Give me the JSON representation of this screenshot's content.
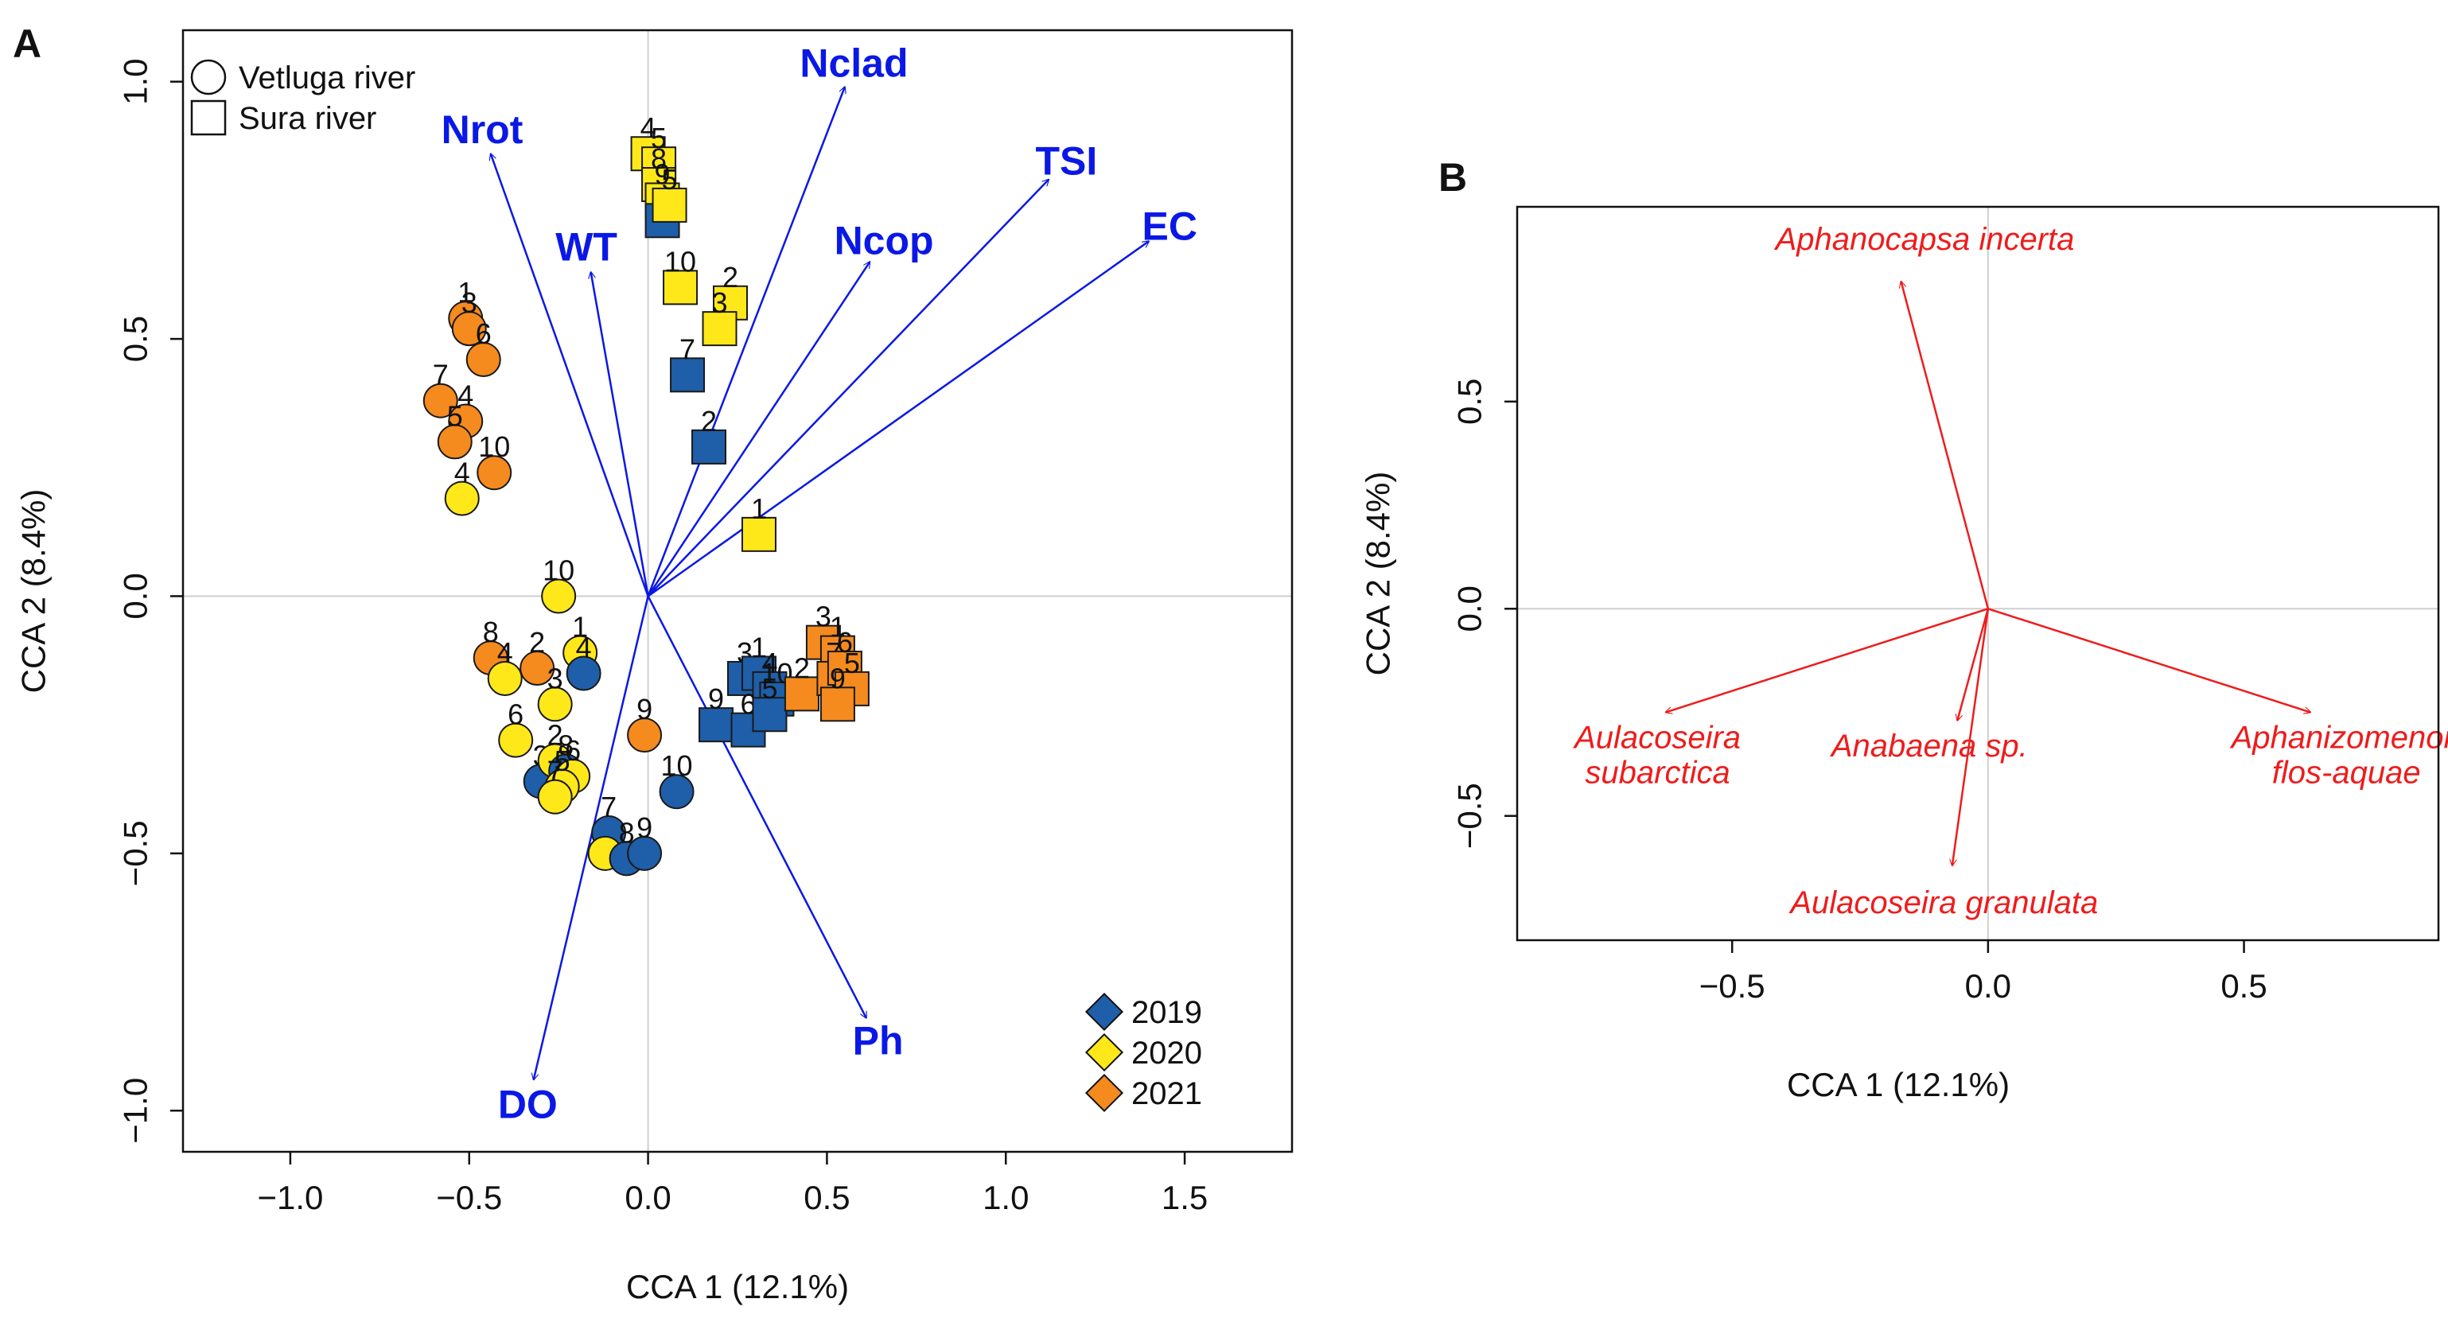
{
  "chart_data": [
    {
      "panel": "A",
      "type": "scatter",
      "xlabel": "CCA 1 (12.1%)",
      "ylabel": "CCA 2 (8.4%)",
      "xlim": [
        -1.3,
        1.8
      ],
      "ylim": [
        -1.08,
        1.1
      ],
      "xticks": [
        -1.0,
        -0.5,
        0.0,
        0.5,
        1.0,
        1.5
      ],
      "yticks": [
        -1.0,
        -0.5,
        0.0,
        0.5,
        1.0
      ],
      "xtick_labels": [
        "−1.0",
        "−0.5",
        "0.0",
        "0.5",
        "1.0",
        "1.5"
      ],
      "ytick_labels": [
        "−1.0",
        "−0.5",
        "0.0",
        "0.5",
        "1.0"
      ],
      "arrows": [
        {
          "label": "Nclad",
          "x": 0.55,
          "y": 0.99
        },
        {
          "label": "Nrot",
          "x": -0.44,
          "y": 0.86
        },
        {
          "label": "TSI",
          "x": 1.12,
          "y": 0.81
        },
        {
          "label": "EC",
          "x": 1.4,
          "y": 0.69
        },
        {
          "label": "Ncop",
          "x": 0.62,
          "y": 0.65
        },
        {
          "label": "WT",
          "x": -0.16,
          "y": 0.63
        },
        {
          "label": "Ph",
          "x": 0.61,
          "y": -0.82
        },
        {
          "label": "DO",
          "x": -0.32,
          "y": -0.94
        }
      ],
      "shape_legend": [
        {
          "shape": "circle",
          "label": "Vetluga river"
        },
        {
          "shape": "square",
          "label": "Sura river"
        }
      ],
      "year_legend": [
        {
          "year": "2019",
          "color": "#1f5ea8"
        },
        {
          "year": "2020",
          "color": "#ffe81a"
        },
        {
          "year": "2021",
          "color": "#f58a1f"
        }
      ],
      "points": [
        {
          "x": -0.51,
          "y": 0.54,
          "shape": "circle",
          "year": "2021",
          "label": "1"
        },
        {
          "x": -0.5,
          "y": 0.52,
          "shape": "circle",
          "year": "2021",
          "label": "3"
        },
        {
          "x": -0.46,
          "y": 0.46,
          "shape": "circle",
          "year": "2021",
          "label": "6"
        },
        {
          "x": -0.58,
          "y": 0.38,
          "shape": "circle",
          "year": "2021",
          "label": "7"
        },
        {
          "x": -0.51,
          "y": 0.34,
          "shape": "circle",
          "year": "2021",
          "label": "4"
        },
        {
          "x": -0.54,
          "y": 0.3,
          "shape": "circle",
          "year": "2021",
          "label": "5"
        },
        {
          "x": -0.43,
          "y": 0.24,
          "shape": "circle",
          "year": "2021",
          "label": "10"
        },
        {
          "x": -0.52,
          "y": 0.19,
          "shape": "circle",
          "year": "2020",
          "label": "4"
        },
        {
          "x": 0.0,
          "y": 0.86,
          "shape": "square",
          "year": "2020",
          "label": "4"
        },
        {
          "x": 0.03,
          "y": 0.84,
          "shape": "square",
          "year": "2020",
          "label": "5"
        },
        {
          "x": 0.03,
          "y": 0.8,
          "shape": "square",
          "year": "2020",
          "label": "8"
        },
        {
          "x": 0.04,
          "y": 0.77,
          "shape": "square",
          "year": "2020",
          "label": "9"
        },
        {
          "x": 0.04,
          "y": 0.73,
          "shape": "square",
          "year": "2019",
          "label": ""
        },
        {
          "x": 0.06,
          "y": 0.76,
          "shape": "square",
          "year": "2020",
          "label": "5"
        },
        {
          "x": 0.09,
          "y": 0.6,
          "shape": "square",
          "year": "2020",
          "label": "10"
        },
        {
          "x": 0.23,
          "y": 0.57,
          "shape": "square",
          "year": "2020",
          "label": "2"
        },
        {
          "x": 0.2,
          "y": 0.52,
          "shape": "square",
          "year": "2020",
          "label": "3"
        },
        {
          "x": 0.11,
          "y": 0.43,
          "shape": "square",
          "year": "2019",
          "label": "7"
        },
        {
          "x": 0.17,
          "y": 0.29,
          "shape": "square",
          "year": "2019",
          "label": "2"
        },
        {
          "x": 0.31,
          "y": 0.12,
          "shape": "square",
          "year": "2020",
          "label": "1"
        },
        {
          "x": -0.25,
          "y": 0.0,
          "shape": "circle",
          "year": "2020",
          "label": "10"
        },
        {
          "x": -0.44,
          "y": -0.12,
          "shape": "circle",
          "year": "2021",
          "label": "8"
        },
        {
          "x": -0.4,
          "y": -0.16,
          "shape": "circle",
          "year": "2020",
          "label": "4"
        },
        {
          "x": -0.31,
          "y": -0.14,
          "shape": "circle",
          "year": "2021",
          "label": "2"
        },
        {
          "x": -0.19,
          "y": -0.11,
          "shape": "circle",
          "year": "2020",
          "label": "1"
        },
        {
          "x": -0.18,
          "y": -0.15,
          "shape": "circle",
          "year": "2019",
          "label": "4"
        },
        {
          "x": -0.26,
          "y": -0.21,
          "shape": "circle",
          "year": "2020",
          "label": "3"
        },
        {
          "x": -0.37,
          "y": -0.28,
          "shape": "circle",
          "year": "2020",
          "label": "6"
        },
        {
          "x": -0.3,
          "y": -0.36,
          "shape": "circle",
          "year": "2019",
          "label": "3"
        },
        {
          "x": -0.26,
          "y": -0.32,
          "shape": "circle",
          "year": "2020",
          "label": "2"
        },
        {
          "x": -0.23,
          "y": -0.34,
          "shape": "circle",
          "year": "2019",
          "label": "8"
        },
        {
          "x": -0.21,
          "y": -0.35,
          "shape": "circle",
          "year": "2020",
          "label": "6"
        },
        {
          "x": -0.24,
          "y": -0.37,
          "shape": "circle",
          "year": "2020",
          "label": "5"
        },
        {
          "x": -0.26,
          "y": -0.39,
          "shape": "circle",
          "year": "2020",
          "label": "7"
        },
        {
          "x": -0.01,
          "y": -0.27,
          "shape": "circle",
          "year": "2021",
          "label": "9"
        },
        {
          "x": 0.08,
          "y": -0.38,
          "shape": "circle",
          "year": "2019",
          "label": "10"
        },
        {
          "x": -0.11,
          "y": -0.46,
          "shape": "circle",
          "year": "2019",
          "label": "7"
        },
        {
          "x": -0.12,
          "y": -0.5,
          "shape": "circle",
          "year": "2020",
          "label": ""
        },
        {
          "x": -0.06,
          "y": -0.51,
          "shape": "circle",
          "year": "2019",
          "label": "8"
        },
        {
          "x": -0.01,
          "y": -0.5,
          "shape": "circle",
          "year": "2019",
          "label": "9"
        },
        {
          "x": 0.27,
          "y": -0.16,
          "shape": "square",
          "year": "2019",
          "label": "3"
        },
        {
          "x": 0.31,
          "y": -0.15,
          "shape": "square",
          "year": "2019",
          "label": "1"
        },
        {
          "x": 0.34,
          "y": -0.18,
          "shape": "square",
          "year": "2019",
          "label": "4"
        },
        {
          "x": 0.36,
          "y": -0.2,
          "shape": "square",
          "year": "2019",
          "label": "10"
        },
        {
          "x": 0.19,
          "y": -0.25,
          "shape": "square",
          "year": "2019",
          "label": "9"
        },
        {
          "x": 0.28,
          "y": -0.26,
          "shape": "square",
          "year": "2019",
          "label": "6"
        },
        {
          "x": 0.34,
          "y": -0.23,
          "shape": "square",
          "year": "2019",
          "label": "5"
        },
        {
          "x": 0.43,
          "y": -0.19,
          "shape": "square",
          "year": "2021",
          "label": "2"
        },
        {
          "x": 0.49,
          "y": -0.09,
          "shape": "square",
          "year": "2021",
          "label": "3"
        },
        {
          "x": 0.53,
          "y": -0.11,
          "shape": "square",
          "year": "2021",
          "label": "1"
        },
        {
          "x": 0.52,
          "y": -0.16,
          "shape": "square",
          "year": "2021",
          "label": "7"
        },
        {
          "x": 0.55,
          "y": -0.14,
          "shape": "square",
          "year": "2021",
          "label": "6"
        },
        {
          "x": 0.57,
          "y": -0.18,
          "shape": "square",
          "year": "2021",
          "label": "5"
        },
        {
          "x": 0.53,
          "y": -0.21,
          "shape": "square",
          "year": "2021",
          "label": "9"
        }
      ]
    },
    {
      "panel": "B",
      "type": "scatter",
      "xlabel": "CCA 1 (12.1%)",
      "ylabel": "CCA 2 (8.4%)",
      "xlim": [
        -0.92,
        0.88
      ],
      "ylim": [
        -0.8,
        0.97
      ],
      "xticks": [
        -0.5,
        0.0,
        0.5
      ],
      "yticks": [
        -0.5,
        0.0,
        0.5
      ],
      "xtick_labels": [
        "−0.5",
        "0.0",
        "0.5"
      ],
      "ytick_labels": [
        "−0.5",
        "0.0",
        "0.5"
      ],
      "arrows": [
        {
          "label": "Aphanocapsa incerta",
          "x": -0.17,
          "y": 0.79
        },
        {
          "label": "Aulacoseira subarctica",
          "x": -0.63,
          "y": -0.25
        },
        {
          "label": "Anabaena sp.",
          "x": -0.06,
          "y": -0.27
        },
        {
          "label": "Aphanizomenon flos-aquae",
          "x": 0.63,
          "y": -0.25
        },
        {
          "label": "Aulacoseira granulata",
          "x": -0.07,
          "y": -0.62
        }
      ]
    }
  ]
}
